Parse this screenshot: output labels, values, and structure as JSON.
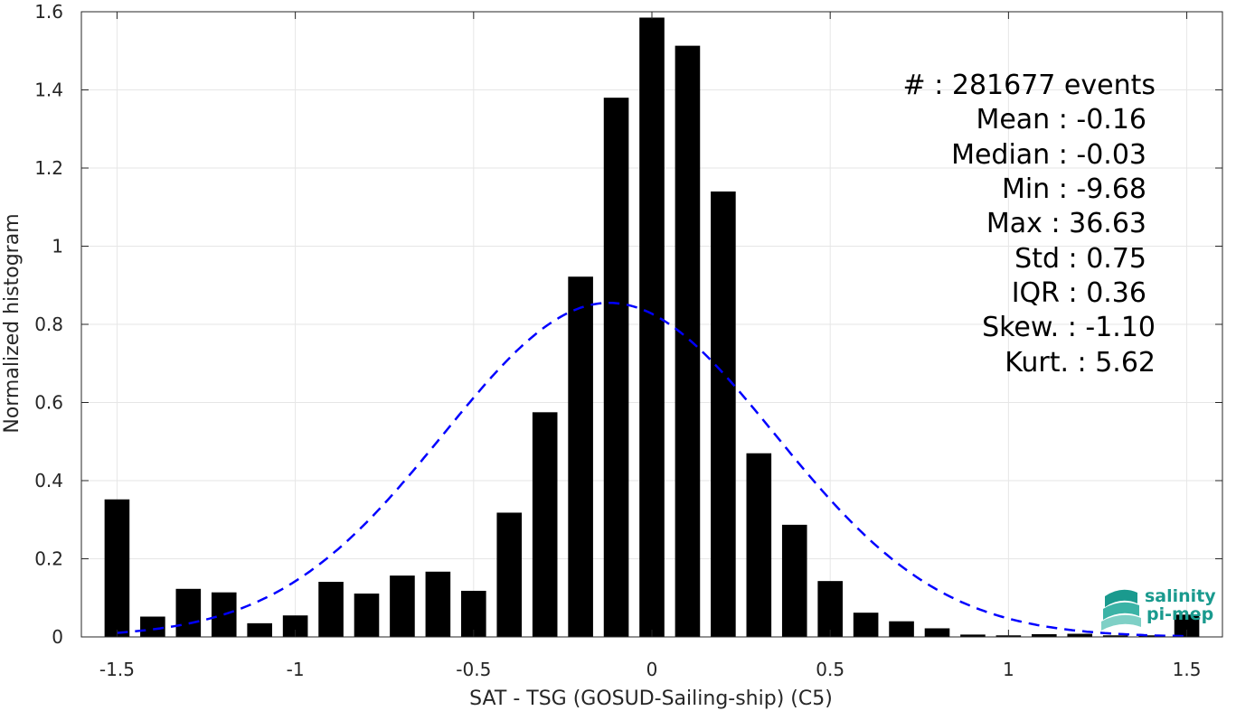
{
  "chart_data": {
    "type": "bar",
    "xlabel": "SAT - TSG (GOSUD-Sailing-ship) (C5)",
    "ylabel": "Normalized histogram",
    "xlim": [
      -1.6,
      1.6
    ],
    "ylim": [
      0,
      1.6
    ],
    "xticks": [
      -1.5,
      -1,
      -0.5,
      0,
      0.5,
      1,
      1.5
    ],
    "xtick_labels": [
      "-1.5",
      "-1",
      "-0.5",
      "0",
      "0.5",
      "1",
      "1.5"
    ],
    "yticks": [
      0,
      0.2,
      0.4,
      0.6,
      0.8,
      1,
      1.2,
      1.4,
      1.6
    ],
    "ytick_labels": [
      "0",
      "0.2",
      "0.4",
      "0.6",
      "0.8",
      "1",
      "1.2",
      "1.4",
      "1.6"
    ],
    "grid": true,
    "bar_width": 0.07,
    "bin_centers": [
      -1.5,
      -1.4,
      -1.3,
      -1.2,
      -1.1,
      -1.0,
      -0.9,
      -0.8,
      -0.7,
      -0.6,
      -0.5,
      -0.4,
      -0.3,
      -0.2,
      -0.1,
      0.0,
      0.1,
      0.2,
      0.3,
      0.4,
      0.5,
      0.6,
      0.7,
      0.8,
      0.9,
      1.0,
      1.1,
      1.2,
      1.3,
      1.4,
      1.5
    ],
    "values": [
      0.352,
      0.052,
      0.123,
      0.114,
      0.035,
      0.055,
      0.141,
      0.111,
      0.157,
      0.167,
      0.118,
      0.318,
      0.575,
      0.922,
      1.38,
      1.585,
      1.513,
      1.14,
      0.47,
      0.287,
      0.143,
      0.062,
      0.04,
      0.022,
      0.006,
      0.004,
      0.007,
      0.008,
      0.004,
      0.004,
      0.057
    ],
    "bar_color": "#000000",
    "fit_curve": {
      "type": "gaussian",
      "mean": -0.12,
      "std": 0.465,
      "peak": 0.855,
      "style": "dashed",
      "color": "#0000ff"
    },
    "annotations": [
      "#  : 281677 events",
      "Mean : -0.16",
      "Median : -0.03",
      "Min : -9.68",
      "Max : 36.63",
      "Std : 0.75",
      "IQR : 0.36",
      "Skew. : -1.10",
      "Kurt. : 5.62"
    ],
    "logo": {
      "line1": "salinity",
      "line2": "pi-mep",
      "color": "#1a9a8e"
    }
  }
}
